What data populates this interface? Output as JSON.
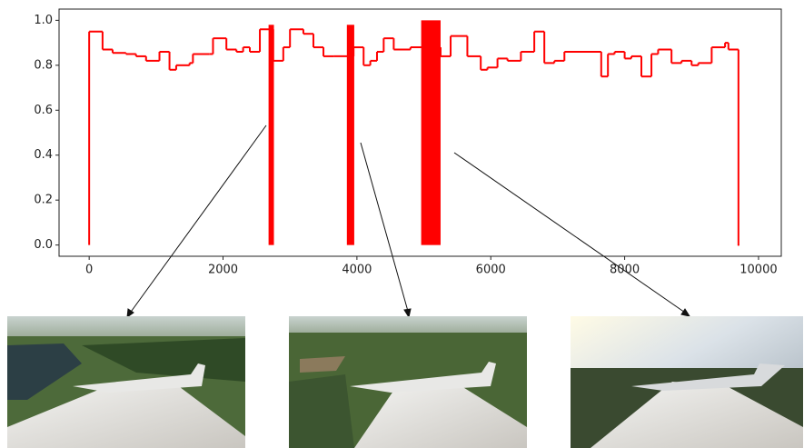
{
  "chart_data": {
    "type": "step",
    "x": [
      0,
      200,
      350,
      550,
      700,
      850,
      1050,
      1200,
      1300,
      1500,
      1550,
      1800,
      1850,
      2050,
      2200,
      2300,
      2400,
      2550,
      2750,
      2900,
      3000,
      3200,
      3350,
      3500,
      3650,
      3950,
      4100,
      4200,
      4300,
      4400,
      4550,
      4800,
      5250,
      5400,
      5650,
      5850,
      5950,
      6100,
      6250,
      6450,
      6650,
      6800,
      6950,
      7100,
      7650,
      7750,
      7850,
      8000,
      8100,
      8250,
      8400,
      8500,
      8700,
      8850,
      9000,
      9100,
      9300,
      9500,
      9550,
      9700
    ],
    "values": [
      0.95,
      0.87,
      0.855,
      0.85,
      0.84,
      0.82,
      0.86,
      0.78,
      0.8,
      0.81,
      0.85,
      0.85,
      0.92,
      0.87,
      0.86,
      0.88,
      0.86,
      0.96,
      0.82,
      0.88,
      0.96,
      0.94,
      0.88,
      0.84,
      0.84,
      0.88,
      0.8,
      0.82,
      0.86,
      0.92,
      0.87,
      0.88,
      0.84,
      0.93,
      0.84,
      0.78,
      0.79,
      0.83,
      0.82,
      0.86,
      0.95,
      0.81,
      0.82,
      0.86,
      0.75,
      0.85,
      0.86,
      0.83,
      0.84,
      0.75,
      0.85,
      0.87,
      0.81,
      0.82,
      0.8,
      0.81,
      0.88,
      0.9,
      0.87,
      0
    ],
    "spans": [
      {
        "x": [
          2680,
          2760
        ],
        "value": 0.98
      },
      {
        "x": [
          3850,
          3960
        ],
        "value": 0.98
      },
      {
        "x": [
          4960,
          5250
        ],
        "value": 1.0
      }
    ],
    "color": "#ff0000",
    "xlim": [
      -450,
      10340
    ],
    "ylim": [
      -0.05,
      1.05
    ],
    "xticks": [
      0,
      2000,
      4000,
      6000,
      8000,
      10000
    ],
    "yticks": [
      {
        "value": 0,
        "label": "0.0"
      },
      {
        "value": 0.2,
        "label": "0.2"
      },
      {
        "value": 0.4,
        "label": "0.4"
      },
      {
        "value": 0.6,
        "label": "0.6"
      },
      {
        "value": 0.8,
        "label": "0.8"
      },
      {
        "value": 1,
        "label": "1.0"
      }
    ]
  }
}
